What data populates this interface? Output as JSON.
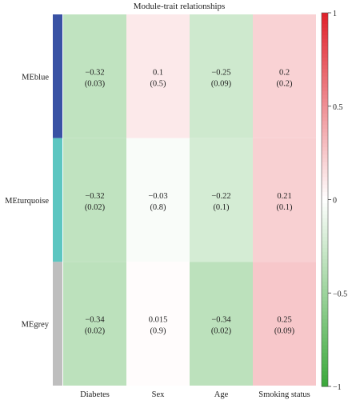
{
  "chart_data": {
    "type": "heatmap",
    "title": "Module-trait relationships",
    "columns": [
      "Diabetes",
      "Sex",
      "Age",
      "Smoking status"
    ],
    "rows": [
      {
        "name": "MEblue",
        "color": "#3952a4",
        "values": [
          -0.32,
          0.1,
          -0.25,
          0.2
        ],
        "labels": [
          "−0.32",
          "0.1",
          "−0.25",
          "0.2"
        ],
        "pvalues": [
          "(0.03)",
          "(0.5)",
          "(0.09)",
          "(0.2)"
        ]
      },
      {
        "name": "MEturquoise",
        "color": "#5cc6c1",
        "values": [
          -0.32,
          -0.03,
          -0.22,
          0.21
        ],
        "labels": [
          "−0.32",
          "−0.03",
          "−0.22",
          "0.21"
        ],
        "pvalues": [
          "(0.02)",
          "(0.8)",
          "(0.1)",
          "(0.1)"
        ]
      },
      {
        "name": "MEgrey",
        "color": "#bebebe",
        "values": [
          -0.34,
          0.015,
          -0.34,
          0.25
        ],
        "labels": [
          "−0.34",
          "0.015",
          "−0.34",
          "0.25"
        ],
        "pvalues": [
          "(0.02)",
          "(0.9)",
          "(0.02)",
          "(0.09)"
        ]
      }
    ],
    "color_scale": {
      "min": -1,
      "max": 1,
      "low_color": "#3aa83a",
      "mid_color": "#ffffff",
      "high_color": "#e0202a"
    },
    "colorbar_ticks": [
      {
        "value": 1,
        "label": "1"
      },
      {
        "value": 0.5,
        "label": "0.5"
      },
      {
        "value": 0,
        "label": "0"
      },
      {
        "value": -0.5,
        "label": "−0.5"
      },
      {
        "value": -1,
        "label": "−1"
      }
    ]
  }
}
